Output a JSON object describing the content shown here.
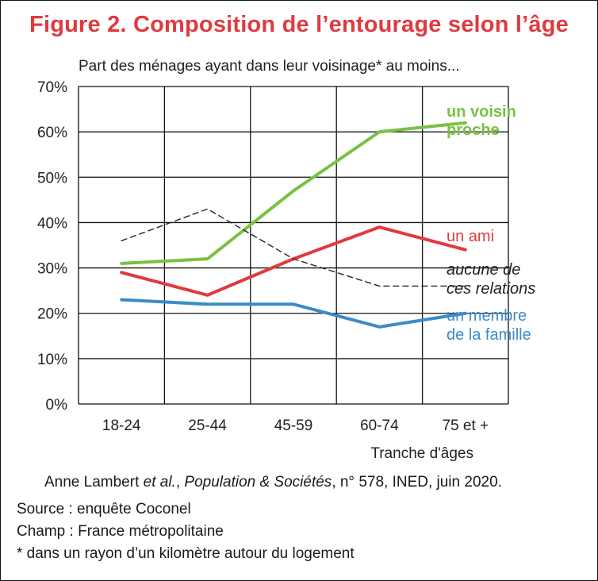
{
  "title": "Figure 2. Composition de l’entourage selon l’âge",
  "subtitle": "Part des ménages ayant dans leur voisinage* au moins...",
  "citation": {
    "author": "Anne Lambert",
    "etal": "et al.",
    "sep": ", ",
    "journal": "Population & Sociétés",
    "rest": ", n° 578, INED, juin 2020."
  },
  "source": "Source : enquête Coconel",
  "champ": "Champ : France métropolitaine",
  "note": "* dans un rayon d’un kilomètre autour du logement",
  "chart_data": {
    "type": "line",
    "title": "Figure 2. Composition de l’entourage selon l’âge",
    "subtitle": "Part des ménages ayant dans leur voisinage* au moins...",
    "xlabel": "Tranche d'âges",
    "ylabel": "",
    "categories": [
      "18-24",
      "25-44",
      "45-59",
      "60-74",
      "75 et +"
    ],
    "ylim": [
      0,
      70
    ],
    "yticks": [
      "0%",
      "10%",
      "20%",
      "30%",
      "40%",
      "50%",
      "60%",
      "70%"
    ],
    "grid": true,
    "series": [
      {
        "name": "un voisin proche",
        "label_lines": [
          "un voisin",
          "proche"
        ],
        "color": "#7ac143",
        "dash": false,
        "values": [
          31,
          32,
          47,
          60,
          62
        ]
      },
      {
        "name": "un ami",
        "label_lines": [
          "un ami"
        ],
        "color": "#e03a3e",
        "dash": false,
        "values": [
          29,
          24,
          32,
          39,
          34
        ]
      },
      {
        "name": "aucune de ces relations",
        "label_lines": [
          "aucune de",
          "ces relations"
        ],
        "color": "#222222",
        "dash": true,
        "values": [
          36,
          43,
          32,
          26,
          26
        ]
      },
      {
        "name": "un membre de la famille",
        "label_lines": [
          "un membre",
          "de la famille"
        ],
        "color": "#3d8bc7",
        "dash": false,
        "values": [
          23,
          22,
          22,
          17,
          20
        ]
      }
    ]
  },
  "colors": {
    "title": "#e03a3e",
    "voisin": "#7ac143",
    "ami": "#e03a3e",
    "aucune": "#222222",
    "famille": "#3d8bc7"
  }
}
